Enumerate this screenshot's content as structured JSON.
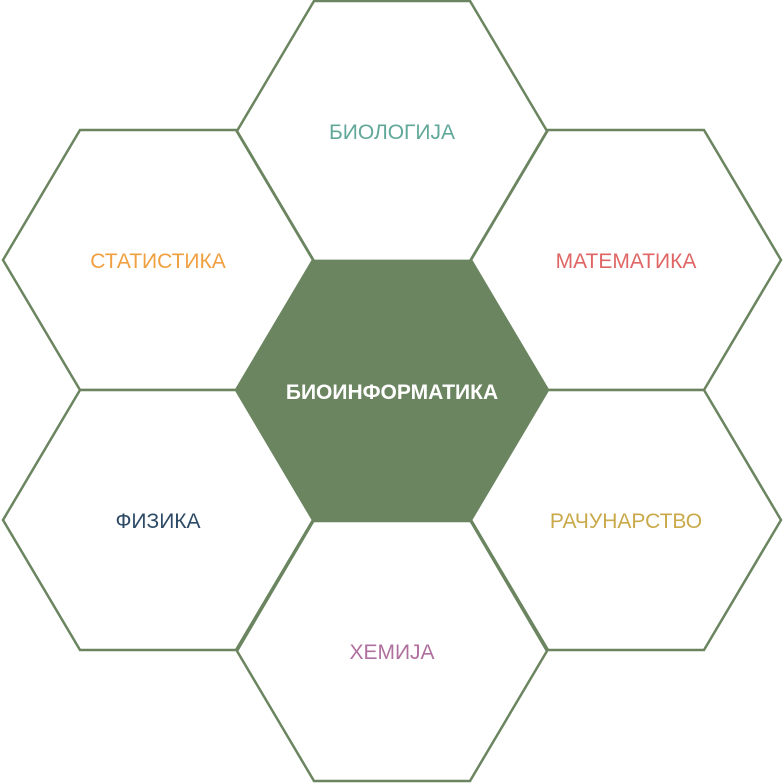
{
  "diagram": {
    "center": {
      "label": "БИОИНФОРМАТИКА",
      "fill": "#6b8560",
      "text_color": "#ffffff"
    },
    "outline_color": "#6b8560",
    "hexes": [
      {
        "label": "БИОЛОГИЈА",
        "color": "#62a89a"
      },
      {
        "label": "МАТЕМАТИКА",
        "color": "#e06666"
      },
      {
        "label": "РАЧУНАРСТВО",
        "color": "#c9a94a"
      },
      {
        "label": "ХЕМИЈА",
        "color": "#b0709f"
      },
      {
        "label": "ФИЗИКА",
        "color": "#2d4a66"
      },
      {
        "label": "СТАТИСТИКА",
        "color": "#f0a040"
      }
    ]
  }
}
